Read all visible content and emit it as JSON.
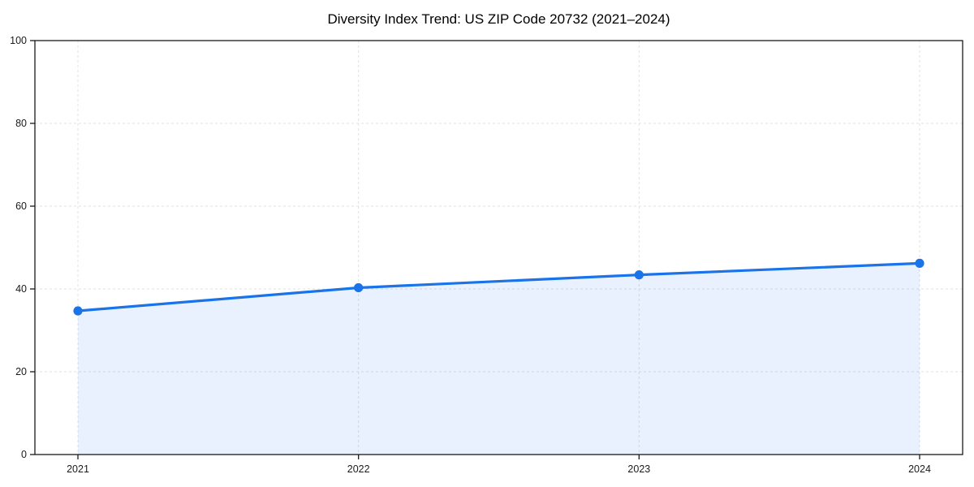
{
  "title": "Diversity Index Trend: US ZIP Code 20732 (2021–2024)",
  "chart_data": {
    "type": "area",
    "title": "Diversity Index Trend: US ZIP Code 20732 (2021–2024)",
    "categories": [
      "2021",
      "2022",
      "2023",
      "2024"
    ],
    "series": [
      {
        "name": "Diversity Index",
        "values": [
          34.7,
          40.3,
          43.4,
          46.2
        ]
      }
    ],
    "xlabel": "",
    "ylabel": "",
    "ylim": [
      0,
      100
    ],
    "yticks": [
      0,
      20,
      40,
      60,
      80,
      100
    ],
    "grid": "dashed-both-axes",
    "legend": "none",
    "marker": "circle",
    "colors": {
      "line": "#1a73e8",
      "marker": "#1a73e8",
      "fill": "rgba(26,115,232,0.10)",
      "grid": "#e1e1e1",
      "spine": "#1a1a1a",
      "tick": "#1a1a1a",
      "tick_label": "#1a1a1a",
      "title": "#000000",
      "background": "#ffffff"
    }
  }
}
